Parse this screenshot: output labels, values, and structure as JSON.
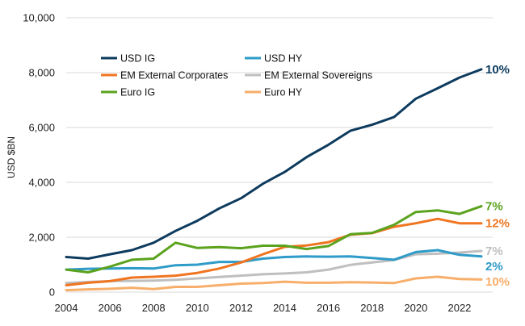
{
  "chart_data": {
    "type": "line",
    "title": "",
    "xlabel": "",
    "ylabel": "USD $BN",
    "xlim": [
      2004,
      2023
    ],
    "ylim": [
      0,
      10000
    ],
    "x_ticks": [
      "2004",
      "2006",
      "2008",
      "2010",
      "2012",
      "2014",
      "2016",
      "2018",
      "2020",
      "2022"
    ],
    "y_ticks": [
      "0",
      "2,000",
      "4,000",
      "6,000",
      "8,000",
      "10,000"
    ],
    "grid": true,
    "legend_position": "top-left",
    "x": [
      2004,
      2005,
      2006,
      2007,
      2008,
      2009,
      2010,
      2011,
      2012,
      2013,
      2014,
      2015,
      2016,
      2017,
      2018,
      2019,
      2020,
      2021,
      2022,
      2023
    ],
    "series": [
      {
        "name": "USD IG",
        "color": "#0d3b5e",
        "values": [
          1280,
          1220,
          1380,
          1530,
          1800,
          2230,
          2600,
          3050,
          3420,
          3950,
          4380,
          4920,
          5370,
          5880,
          6100,
          6380,
          7050,
          7430,
          7820,
          8120
        ],
        "end_label": "10%"
      },
      {
        "name": "USD HY",
        "color": "#2e9bc8",
        "values": [
          820,
          850,
          860,
          870,
          860,
          980,
          1000,
          1100,
          1100,
          1220,
          1280,
          1300,
          1290,
          1300,
          1240,
          1180,
          1460,
          1530,
          1360,
          1300
        ],
        "end_label": "2%"
      },
      {
        "name": "EM External Corporates",
        "color": "#f07520",
        "values": [
          250,
          340,
          400,
          530,
          560,
          600,
          700,
          860,
          1080,
          1380,
          1650,
          1700,
          1820,
          2090,
          2150,
          2380,
          2510,
          2670,
          2510,
          2510
        ],
        "end_label": "12%"
      },
      {
        "name": "EM External Sovereigns",
        "color": "#bfbfbf",
        "values": [
          330,
          370,
          400,
          410,
          420,
          450,
          500,
          550,
          600,
          650,
          680,
          720,
          820,
          990,
          1080,
          1170,
          1380,
          1400,
          1440,
          1500
        ],
        "end_label": "7%"
      },
      {
        "name": "Euro IG",
        "color": "#5ba31e",
        "values": [
          820,
          720,
          930,
          1180,
          1220,
          1800,
          1610,
          1640,
          1600,
          1690,
          1690,
          1570,
          1680,
          2110,
          2160,
          2450,
          2920,
          2980,
          2850,
          3130
        ],
        "end_label": "7%"
      },
      {
        "name": "Euro HY",
        "color": "#f7ae6a",
        "values": [
          70,
          100,
          120,
          160,
          110,
          190,
          190,
          250,
          310,
          330,
          380,
          340,
          340,
          360,
          350,
          330,
          500,
          560,
          480,
          460
        ],
        "end_label": "10%"
      }
    ]
  }
}
